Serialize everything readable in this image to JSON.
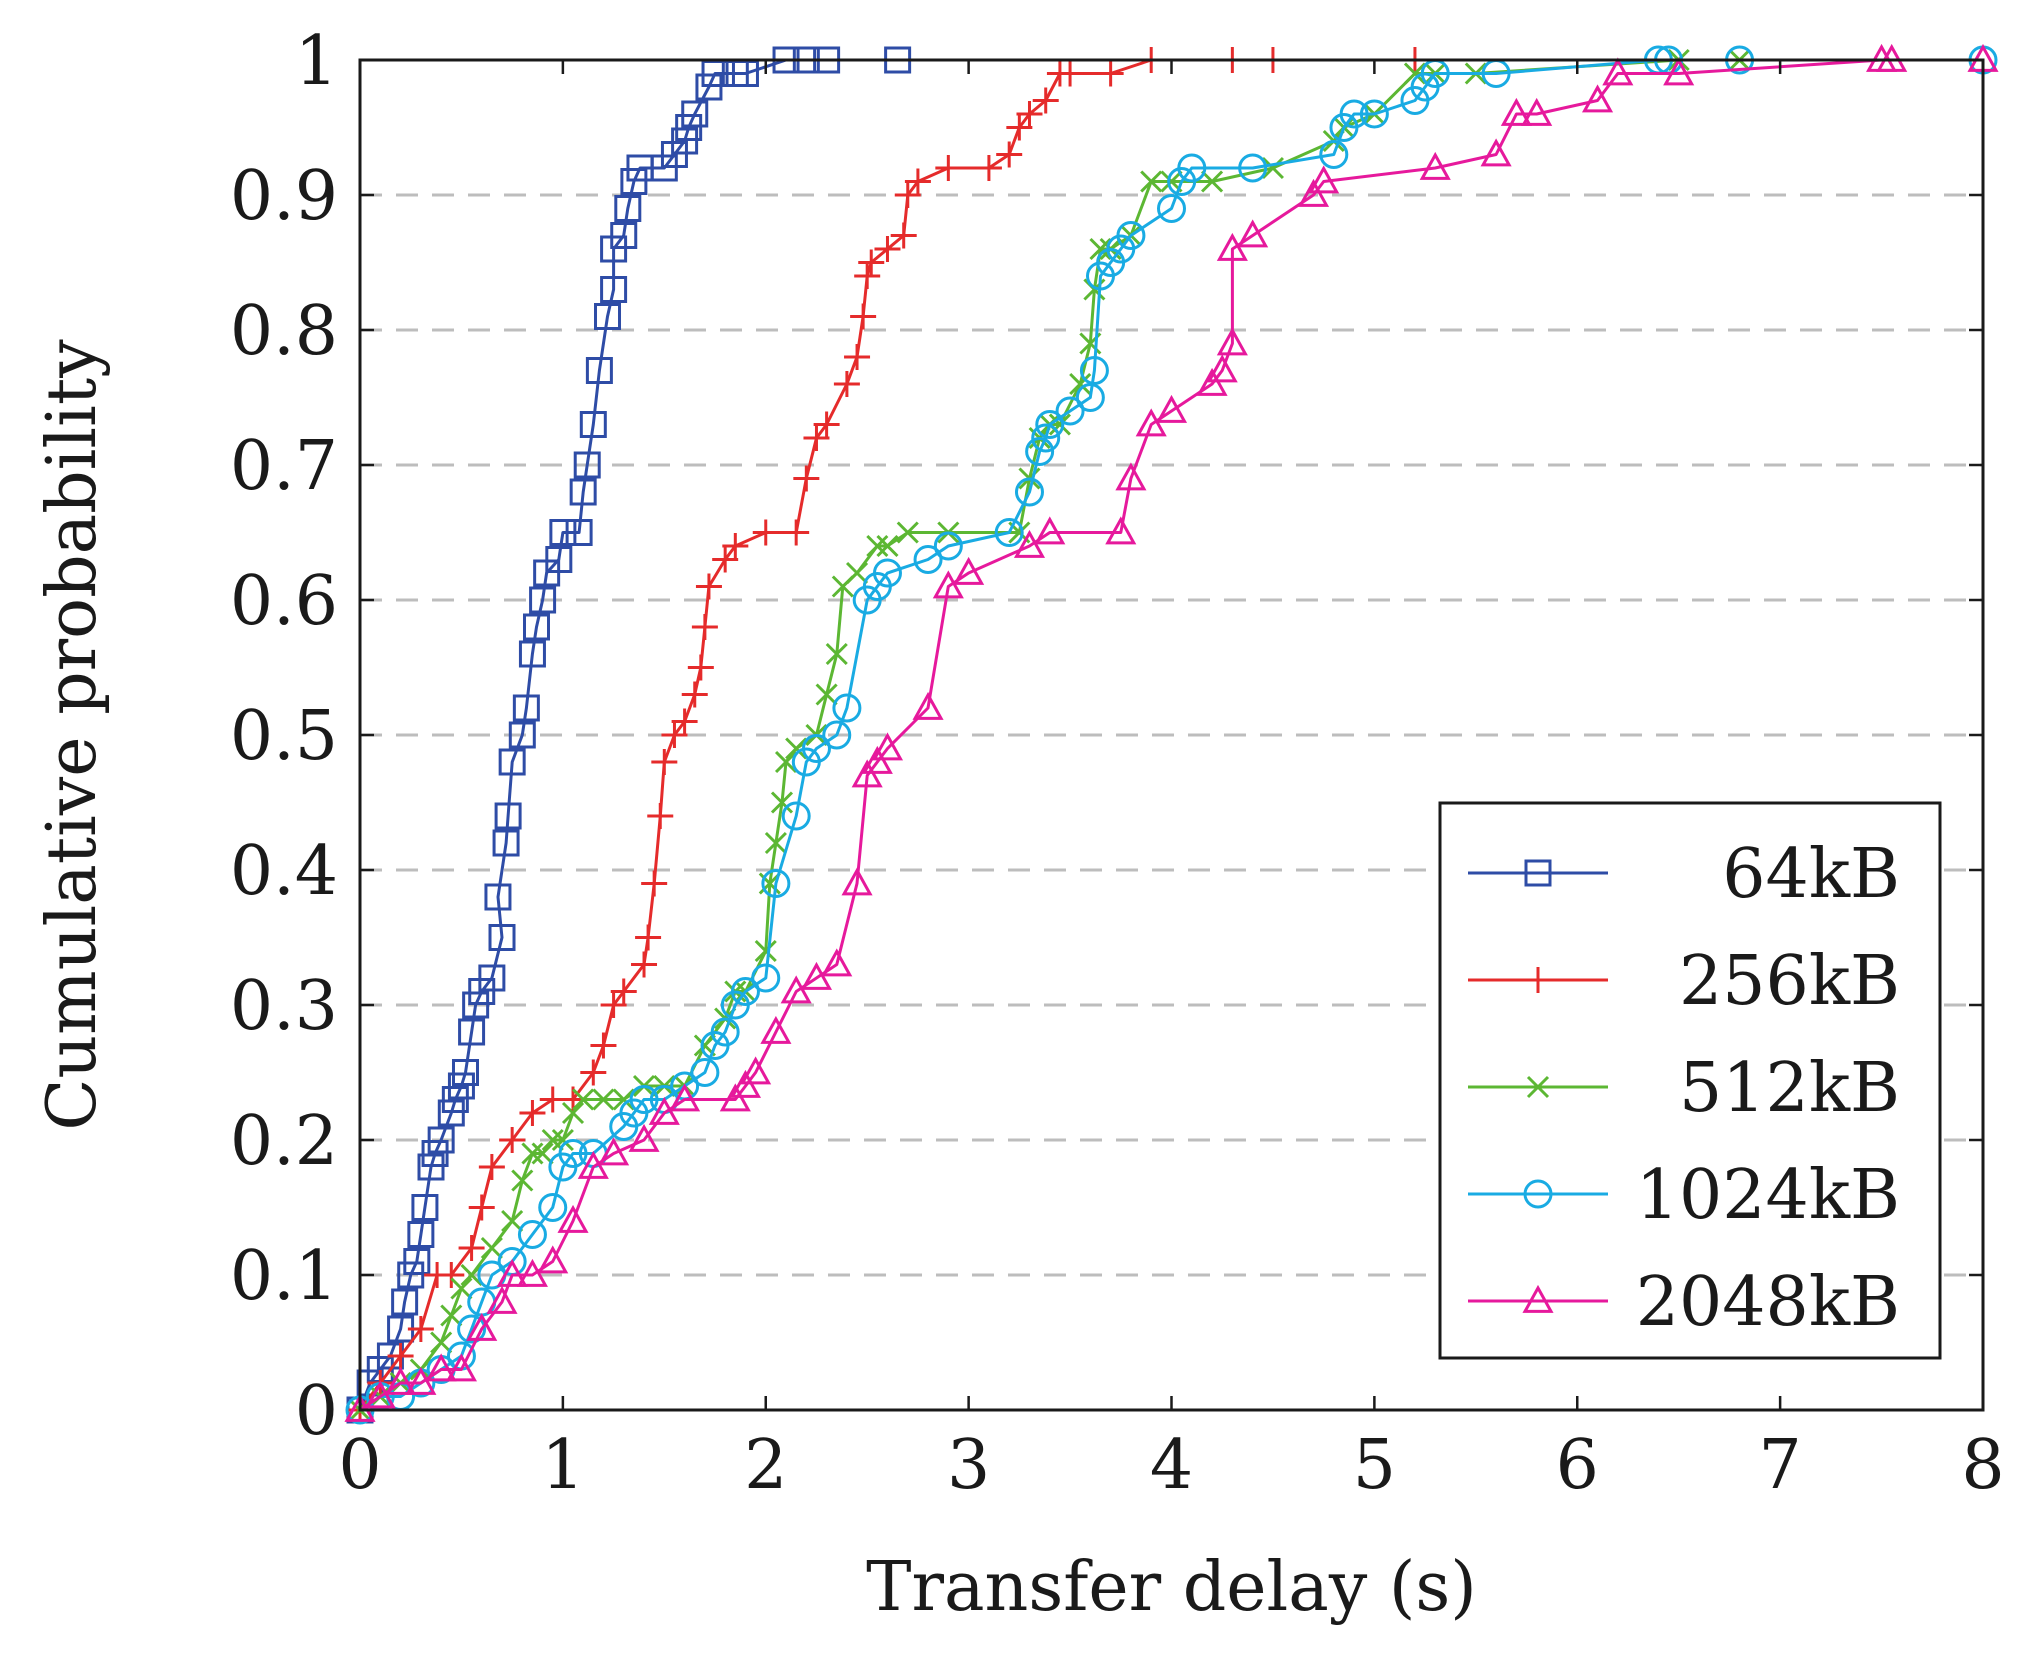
{
  "chart_data": {
    "type": "line",
    "title": "",
    "xlabel": "Transfer delay (s)",
    "ylabel": "Cumulative probability",
    "xlim": [
      0,
      8
    ],
    "ylim": [
      0,
      1
    ],
    "xticks": [
      0,
      1,
      2,
      3,
      4,
      5,
      6,
      7,
      8
    ],
    "xtick_labels": [
      "0",
      "1",
      "2",
      "3",
      "4",
      "5",
      "6",
      "7",
      "8"
    ],
    "yticks": [
      0,
      0.1,
      0.2,
      0.3,
      0.4,
      0.5,
      0.6,
      0.7,
      0.8,
      0.9,
      1
    ],
    "ytick_labels": [
      "0",
      "0.1",
      "0.2",
      "0.3",
      "0.4",
      "0.5",
      "0.6",
      "0.7",
      "0.8",
      "0.9",
      "1"
    ],
    "grid": "horizontal dashed",
    "legend_position": "bottom-right",
    "series": [
      {
        "name": "64kB",
        "color": "#2e4ca6",
        "marker": "square",
        "points": [
          [
            0,
            0
          ],
          [
            0.05,
            0.02
          ],
          [
            0.1,
            0.03
          ],
          [
            0.15,
            0.04
          ],
          [
            0.2,
            0.06
          ],
          [
            0.22,
            0.08
          ],
          [
            0.25,
            0.1
          ],
          [
            0.28,
            0.11
          ],
          [
            0.3,
            0.13
          ],
          [
            0.32,
            0.15
          ],
          [
            0.35,
            0.18
          ],
          [
            0.37,
            0.19
          ],
          [
            0.4,
            0.2
          ],
          [
            0.45,
            0.22
          ],
          [
            0.47,
            0.23
          ],
          [
            0.5,
            0.24
          ],
          [
            0.52,
            0.25
          ],
          [
            0.55,
            0.28
          ],
          [
            0.57,
            0.3
          ],
          [
            0.6,
            0.31
          ],
          [
            0.65,
            0.32
          ],
          [
            0.7,
            0.35
          ],
          [
            0.68,
            0.38
          ],
          [
            0.72,
            0.42
          ],
          [
            0.73,
            0.44
          ],
          [
            0.75,
            0.48
          ],
          [
            0.8,
            0.5
          ],
          [
            0.82,
            0.52
          ],
          [
            0.85,
            0.56
          ],
          [
            0.87,
            0.58
          ],
          [
            0.9,
            0.6
          ],
          [
            0.92,
            0.62
          ],
          [
            0.98,
            0.63
          ],
          [
            1.0,
            0.65
          ],
          [
            1.08,
            0.65
          ],
          [
            1.1,
            0.68
          ],
          [
            1.12,
            0.7
          ],
          [
            1.15,
            0.73
          ],
          [
            1.18,
            0.77
          ],
          [
            1.22,
            0.81
          ],
          [
            1.25,
            0.83
          ],
          [
            1.25,
            0.86
          ],
          [
            1.3,
            0.87
          ],
          [
            1.32,
            0.89
          ],
          [
            1.35,
            0.91
          ],
          [
            1.38,
            0.92
          ],
          [
            1.5,
            0.92
          ],
          [
            1.55,
            0.93
          ],
          [
            1.6,
            0.94
          ],
          [
            1.62,
            0.95
          ],
          [
            1.65,
            0.96
          ],
          [
            1.72,
            0.98
          ],
          [
            1.75,
            0.99
          ],
          [
            1.85,
            0.99
          ],
          [
            1.9,
            0.99
          ],
          [
            2.1,
            1.0
          ],
          [
            2.2,
            1.0
          ],
          [
            2.3,
            1.0
          ],
          [
            2.65,
            1.0
          ]
        ]
      },
      {
        "name": "256kB",
        "color": "#e52b2b",
        "marker": "plus",
        "points": [
          [
            0,
            0
          ],
          [
            0.1,
            0.02
          ],
          [
            0.2,
            0.04
          ],
          [
            0.3,
            0.06
          ],
          [
            0.38,
            0.1
          ],
          [
            0.45,
            0.1
          ],
          [
            0.55,
            0.12
          ],
          [
            0.6,
            0.15
          ],
          [
            0.65,
            0.18
          ],
          [
            0.75,
            0.2
          ],
          [
            0.85,
            0.22
          ],
          [
            0.95,
            0.23
          ],
          [
            1.05,
            0.23
          ],
          [
            1.15,
            0.25
          ],
          [
            1.2,
            0.27
          ],
          [
            1.25,
            0.3
          ],
          [
            1.3,
            0.31
          ],
          [
            1.4,
            0.33
          ],
          [
            1.42,
            0.35
          ],
          [
            1.45,
            0.39
          ],
          [
            1.48,
            0.44
          ],
          [
            1.5,
            0.48
          ],
          [
            1.55,
            0.5
          ],
          [
            1.6,
            0.51
          ],
          [
            1.65,
            0.53
          ],
          [
            1.68,
            0.55
          ],
          [
            1.7,
            0.58
          ],
          [
            1.72,
            0.61
          ],
          [
            1.8,
            0.63
          ],
          [
            1.85,
            0.64
          ],
          [
            2.0,
            0.65
          ],
          [
            2.15,
            0.65
          ],
          [
            2.2,
            0.69
          ],
          [
            2.25,
            0.72
          ],
          [
            2.3,
            0.73
          ],
          [
            2.4,
            0.76
          ],
          [
            2.45,
            0.78
          ],
          [
            2.48,
            0.81
          ],
          [
            2.5,
            0.84
          ],
          [
            2.52,
            0.85
          ],
          [
            2.6,
            0.86
          ],
          [
            2.68,
            0.87
          ],
          [
            2.7,
            0.9
          ],
          [
            2.75,
            0.91
          ],
          [
            2.9,
            0.92
          ],
          [
            3.1,
            0.92
          ],
          [
            3.2,
            0.93
          ],
          [
            3.25,
            0.95
          ],
          [
            3.3,
            0.96
          ],
          [
            3.38,
            0.97
          ],
          [
            3.45,
            0.99
          ],
          [
            3.5,
            0.99
          ],
          [
            3.7,
            0.99
          ],
          [
            3.9,
            1.0
          ],
          [
            4.3,
            1.0
          ],
          [
            4.5,
            1.0
          ],
          [
            5.2,
            1.0
          ]
        ]
      },
      {
        "name": "512kB",
        "color": "#5cb733",
        "marker": "cross",
        "points": [
          [
            0,
            0
          ],
          [
            0.1,
            0.01
          ],
          [
            0.2,
            0.02
          ],
          [
            0.3,
            0.03
          ],
          [
            0.4,
            0.05
          ],
          [
            0.45,
            0.07
          ],
          [
            0.5,
            0.09
          ],
          [
            0.55,
            0.1
          ],
          [
            0.65,
            0.12
          ],
          [
            0.75,
            0.14
          ],
          [
            0.8,
            0.17
          ],
          [
            0.85,
            0.19
          ],
          [
            0.9,
            0.19
          ],
          [
            0.95,
            0.2
          ],
          [
            1.0,
            0.2
          ],
          [
            1.05,
            0.22
          ],
          [
            1.1,
            0.23
          ],
          [
            1.2,
            0.23
          ],
          [
            1.3,
            0.23
          ],
          [
            1.4,
            0.24
          ],
          [
            1.5,
            0.24
          ],
          [
            1.6,
            0.24
          ],
          [
            1.7,
            0.27
          ],
          [
            1.8,
            0.29
          ],
          [
            1.85,
            0.31
          ],
          [
            1.9,
            0.31
          ],
          [
            2.0,
            0.34
          ],
          [
            2.02,
            0.39
          ],
          [
            2.05,
            0.42
          ],
          [
            2.08,
            0.45
          ],
          [
            2.1,
            0.48
          ],
          [
            2.15,
            0.49
          ],
          [
            2.25,
            0.5
          ],
          [
            2.3,
            0.53
          ],
          [
            2.35,
            0.56
          ],
          [
            2.38,
            0.61
          ],
          [
            2.45,
            0.62
          ],
          [
            2.55,
            0.64
          ],
          [
            2.6,
            0.64
          ],
          [
            2.7,
            0.65
          ],
          [
            2.9,
            0.65
          ],
          [
            3.25,
            0.65
          ],
          [
            3.3,
            0.69
          ],
          [
            3.35,
            0.72
          ],
          [
            3.4,
            0.73
          ],
          [
            3.45,
            0.73
          ],
          [
            3.55,
            0.76
          ],
          [
            3.6,
            0.79
          ],
          [
            3.62,
            0.83
          ],
          [
            3.65,
            0.86
          ],
          [
            3.7,
            0.86
          ],
          [
            3.8,
            0.87
          ],
          [
            3.9,
            0.91
          ],
          [
            4.0,
            0.91
          ],
          [
            4.2,
            0.91
          ],
          [
            4.5,
            0.92
          ],
          [
            4.8,
            0.94
          ],
          [
            4.85,
            0.95
          ],
          [
            5.0,
            0.96
          ],
          [
            5.2,
            0.99
          ],
          [
            5.3,
            0.99
          ],
          [
            5.5,
            0.99
          ],
          [
            6.5,
            1.0
          ],
          [
            6.8,
            1.0
          ]
        ]
      },
      {
        "name": "1024kB",
        "color": "#19abe3",
        "marker": "circle",
        "points": [
          [
            0,
            0
          ],
          [
            0.1,
            0.01
          ],
          [
            0.2,
            0.01
          ],
          [
            0.3,
            0.02
          ],
          [
            0.4,
            0.03
          ],
          [
            0.5,
            0.04
          ],
          [
            0.55,
            0.06
          ],
          [
            0.6,
            0.08
          ],
          [
            0.65,
            0.1
          ],
          [
            0.75,
            0.11
          ],
          [
            0.85,
            0.13
          ],
          [
            0.95,
            0.15
          ],
          [
            1.0,
            0.18
          ],
          [
            1.05,
            0.19
          ],
          [
            1.15,
            0.19
          ],
          [
            1.3,
            0.21
          ],
          [
            1.35,
            0.22
          ],
          [
            1.4,
            0.23
          ],
          [
            1.5,
            0.23
          ],
          [
            1.6,
            0.24
          ],
          [
            1.7,
            0.25
          ],
          [
            1.75,
            0.27
          ],
          [
            1.8,
            0.28
          ],
          [
            1.85,
            0.3
          ],
          [
            1.9,
            0.31
          ],
          [
            2.0,
            0.32
          ],
          [
            2.05,
            0.39
          ],
          [
            2.15,
            0.44
          ],
          [
            2.2,
            0.48
          ],
          [
            2.25,
            0.49
          ],
          [
            2.35,
            0.5
          ],
          [
            2.4,
            0.52
          ],
          [
            2.5,
            0.6
          ],
          [
            2.55,
            0.61
          ],
          [
            2.6,
            0.62
          ],
          [
            2.8,
            0.63
          ],
          [
            2.9,
            0.64
          ],
          [
            3.2,
            0.65
          ],
          [
            3.3,
            0.68
          ],
          [
            3.35,
            0.71
          ],
          [
            3.38,
            0.72
          ],
          [
            3.4,
            0.73
          ],
          [
            3.5,
            0.74
          ],
          [
            3.6,
            0.75
          ],
          [
            3.62,
            0.77
          ],
          [
            3.65,
            0.84
          ],
          [
            3.7,
            0.85
          ],
          [
            3.75,
            0.86
          ],
          [
            3.8,
            0.87
          ],
          [
            4.0,
            0.89
          ],
          [
            4.05,
            0.91
          ],
          [
            4.1,
            0.92
          ],
          [
            4.4,
            0.92
          ],
          [
            4.8,
            0.93
          ],
          [
            4.85,
            0.95
          ],
          [
            4.9,
            0.96
          ],
          [
            5.0,
            0.96
          ],
          [
            5.2,
            0.97
          ],
          [
            5.25,
            0.98
          ],
          [
            5.3,
            0.99
          ],
          [
            5.6,
            0.99
          ],
          [
            6.4,
            1.0
          ],
          [
            6.45,
            1.0
          ],
          [
            6.8,
            1.0
          ],
          [
            8.0,
            1.0
          ]
        ]
      },
      {
        "name": "2048kB",
        "color": "#e6199c",
        "marker": "triangle",
        "points": [
          [
            0,
            0
          ],
          [
            0.1,
            0.01
          ],
          [
            0.2,
            0.02
          ],
          [
            0.3,
            0.02
          ],
          [
            0.4,
            0.03
          ],
          [
            0.5,
            0.03
          ],
          [
            0.6,
            0.06
          ],
          [
            0.7,
            0.08
          ],
          [
            0.75,
            0.1
          ],
          [
            0.85,
            0.1
          ],
          [
            0.95,
            0.11
          ],
          [
            1.05,
            0.14
          ],
          [
            1.15,
            0.18
          ],
          [
            1.25,
            0.19
          ],
          [
            1.4,
            0.2
          ],
          [
            1.5,
            0.22
          ],
          [
            1.6,
            0.23
          ],
          [
            1.85,
            0.23
          ],
          [
            1.9,
            0.24
          ],
          [
            1.95,
            0.25
          ],
          [
            2.05,
            0.28
          ],
          [
            2.15,
            0.31
          ],
          [
            2.25,
            0.32
          ],
          [
            2.35,
            0.33
          ],
          [
            2.45,
            0.39
          ],
          [
            2.5,
            0.47
          ],
          [
            2.55,
            0.48
          ],
          [
            2.6,
            0.49
          ],
          [
            2.8,
            0.52
          ],
          [
            2.9,
            0.61
          ],
          [
            3.0,
            0.62
          ],
          [
            3.3,
            0.64
          ],
          [
            3.4,
            0.65
          ],
          [
            3.75,
            0.65
          ],
          [
            3.8,
            0.69
          ],
          [
            3.9,
            0.73
          ],
          [
            4.0,
            0.74
          ],
          [
            4.2,
            0.76
          ],
          [
            4.25,
            0.77
          ],
          [
            4.3,
            0.79
          ],
          [
            4.3,
            0.86
          ],
          [
            4.4,
            0.87
          ],
          [
            4.7,
            0.9
          ],
          [
            4.75,
            0.91
          ],
          [
            5.3,
            0.92
          ],
          [
            5.6,
            0.93
          ],
          [
            5.7,
            0.96
          ],
          [
            5.8,
            0.96
          ],
          [
            6.1,
            0.97
          ],
          [
            6.2,
            0.99
          ],
          [
            6.5,
            0.99
          ],
          [
            7.5,
            1.0
          ],
          [
            7.55,
            1.0
          ],
          [
            8.0,
            1.0
          ]
        ]
      }
    ]
  }
}
